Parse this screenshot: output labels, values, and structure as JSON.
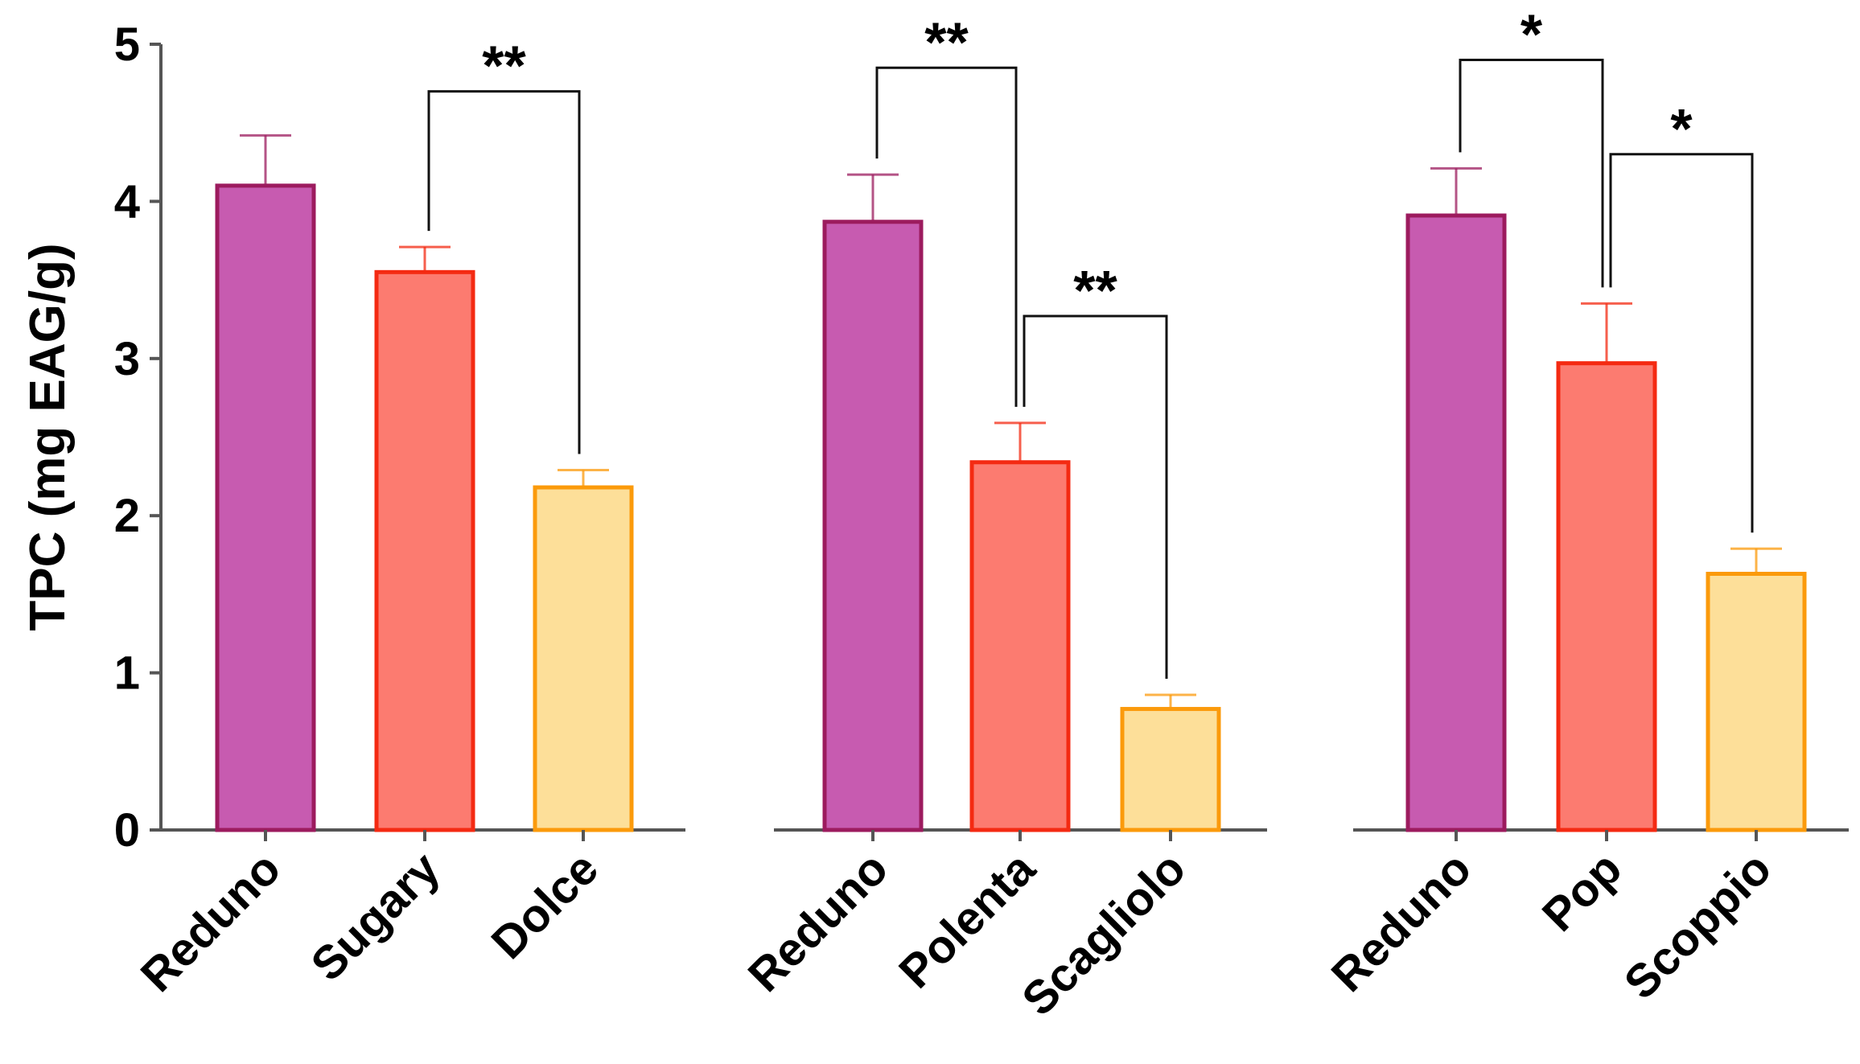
{
  "chart_data": {
    "type": "bar",
    "ylabel": "TPC (mg EAG/g)",
    "ylim": [
      0,
      5
    ],
    "yticks": [
      0,
      1,
      2,
      3,
      4,
      5
    ],
    "grid": false,
    "panels": [
      {
        "categories": [
          "Reduno",
          "Sugary",
          "Dolce"
        ],
        "values": [
          4.1,
          3.55,
          2.18
        ],
        "errors": [
          0.32,
          0.16,
          0.11
        ],
        "significance": [
          {
            "from": 1,
            "to": 2,
            "label": "**",
            "level": 4.7
          }
        ]
      },
      {
        "categories": [
          "Reduno",
          "Polenta",
          "Scagliolo"
        ],
        "values": [
          3.87,
          2.34,
          0.77
        ],
        "errors": [
          0.3,
          0.25,
          0.09
        ],
        "significance": [
          {
            "from": 0,
            "to": 1,
            "label": "**",
            "level": 4.85
          },
          {
            "from": 1,
            "to": 2,
            "label": "**",
            "level": 3.27
          }
        ]
      },
      {
        "categories": [
          "Reduno",
          "Pop",
          "Scoppio"
        ],
        "values": [
          3.91,
          2.97,
          1.63
        ],
        "errors": [
          0.3,
          0.38,
          0.16
        ],
        "significance": [
          {
            "from": 0,
            "to": 1,
            "label": "*",
            "level": 4.9
          },
          {
            "from": 1,
            "to": 2,
            "label": "*",
            "level": 4.3
          }
        ]
      }
    ],
    "bar_styles": [
      {
        "fill": "#c75bb0",
        "stroke": "#9c1b5e"
      },
      {
        "fill": "#fc7b70",
        "stroke": "#f42a12"
      },
      {
        "fill": "#fddf99",
        "stroke": "#fb9a0b"
      }
    ],
    "axis_color": "#555555"
  }
}
